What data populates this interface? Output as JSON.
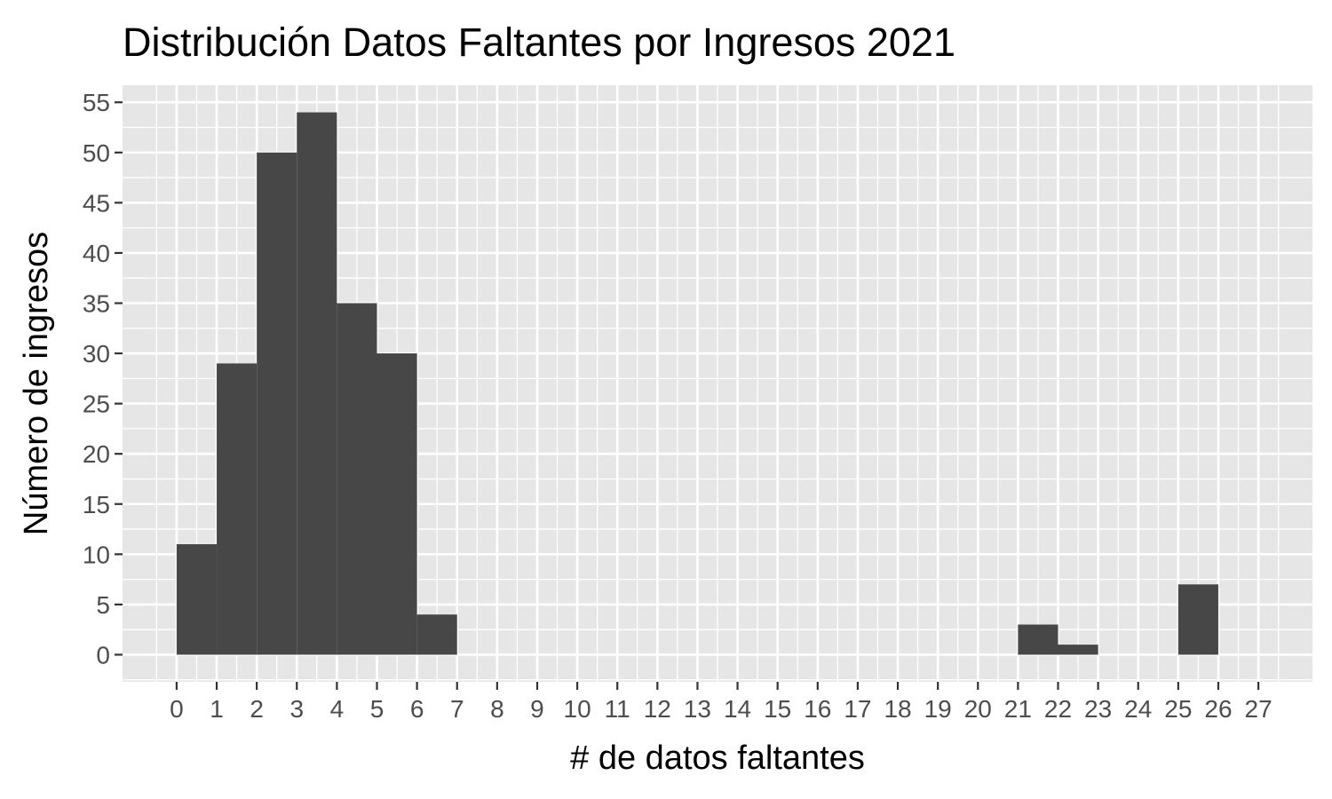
{
  "chart_data": {
    "type": "bar",
    "title": "Distribución Datos Faltantes por Ingresos 2021",
    "xlabel": "# de datos faltantes",
    "ylabel": "Número de ingresos",
    "xlim": [
      -1.35,
      28.35
    ],
    "ylim": [
      -2.7,
      56.7
    ],
    "x_ticks": [
      0,
      1,
      2,
      3,
      4,
      5,
      6,
      7,
      8,
      9,
      10,
      11,
      12,
      13,
      14,
      15,
      16,
      17,
      18,
      19,
      20,
      21,
      22,
      23,
      24,
      25,
      26,
      27
    ],
    "x_tick_labels": [
      "0",
      "1",
      "2",
      "3",
      "4",
      "5",
      "6",
      "7",
      "8",
      "9",
      "10",
      "11",
      "12",
      "13",
      "14",
      "15",
      "16",
      "17",
      "18",
      "19",
      "20",
      "21",
      "22",
      "23",
      "24",
      "25",
      "26",
      "27"
    ],
    "y_ticks": [
      0,
      5,
      10,
      15,
      20,
      25,
      30,
      35,
      40,
      45,
      50,
      55
    ],
    "y_tick_labels": [
      "0",
      "5",
      "10",
      "15",
      "20",
      "25",
      "30",
      "35",
      "40",
      "45",
      "50",
      "55"
    ],
    "bin_width": 1,
    "bins": [
      {
        "start": 0,
        "end": 1,
        "count": 11
      },
      {
        "start": 1,
        "end": 2,
        "count": 29
      },
      {
        "start": 2,
        "end": 3,
        "count": 50
      },
      {
        "start": 3,
        "end": 4,
        "count": 54
      },
      {
        "start": 4,
        "end": 5,
        "count": 35
      },
      {
        "start": 5,
        "end": 6,
        "count": 30
      },
      {
        "start": 6,
        "end": 7,
        "count": 4
      },
      {
        "start": 21,
        "end": 22,
        "count": 3
      },
      {
        "start": 22,
        "end": 23,
        "count": 1
      },
      {
        "start": 25,
        "end": 26,
        "count": 7
      }
    ],
    "grid": true,
    "legend": "none",
    "colors": {
      "bar_fill": "#474747",
      "panel_background": "#e6e6e6",
      "grid_line": "#ffffff",
      "tick_mark": "#333333"
    }
  }
}
